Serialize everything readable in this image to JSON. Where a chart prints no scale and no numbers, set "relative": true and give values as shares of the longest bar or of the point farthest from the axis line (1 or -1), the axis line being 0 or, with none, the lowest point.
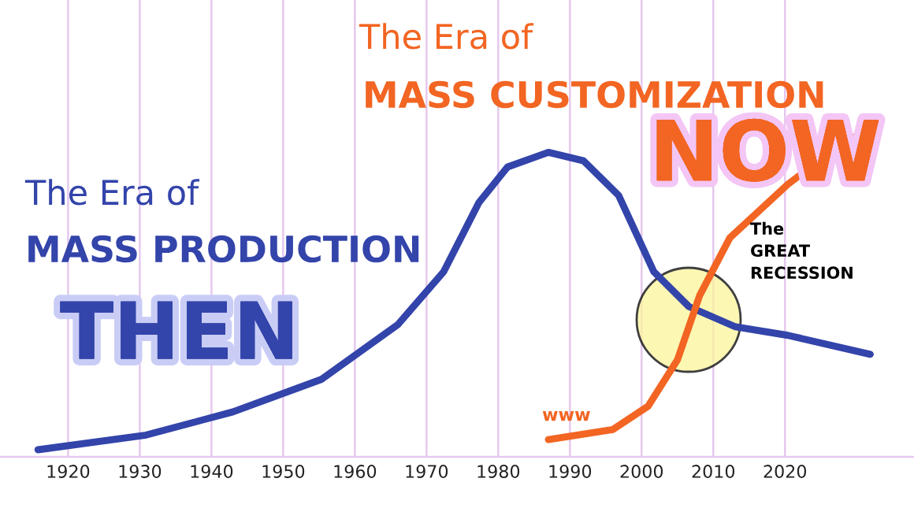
{
  "chart_data": {
    "type": "line",
    "relative": true,
    "grid": "x",
    "tick_labels": "x",
    "xlim": [
      1910.5,
      2038
    ],
    "xticks": [
      1920,
      1930,
      1940,
      1950,
      1960,
      1970,
      1980,
      1990,
      2000,
      2010,
      2020
    ],
    "series": [
      {
        "color": "#3344aa",
        "x": [
          1915.8,
          1930.9,
          1943,
          1955.3,
          1966,
          1972.4,
          1977.3,
          1981.3,
          1987,
          1991.9,
          1996.8,
          2001.7,
          2006.6,
          2013.1,
          2020.4,
          2031.9
        ],
        "values": [
          0,
          0.045,
          0.116,
          0.215,
          0.383,
          0.545,
          0.756,
          0.865,
          0.91,
          0.884,
          0.778,
          0.545,
          0.438,
          0.376,
          0.35,
          0.292
        ]
      },
      {
        "color": "#f26522",
        "x": [
          1987,
          1996,
          2000.9,
          2005,
          2008.1,
          2012.3,
          2020.4,
          2026.3,
          2032.9
        ],
        "values": [
          0.031,
          0.062,
          0.133,
          0.275,
          0.472,
          0.648,
          0.812,
          0.91,
          1.0
        ]
      }
    ],
    "annotations": [
      "The Era of",
      "MASS PRODUCTION",
      "THEN",
      "The Era of",
      "MASS CUSTOMIZATION",
      "NOW",
      "www",
      "The\nGREAT\nRECESSION"
    ]
  }
}
